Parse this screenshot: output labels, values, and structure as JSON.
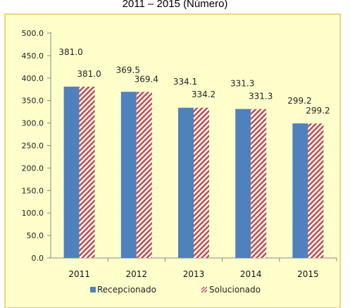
{
  "title": "2011 – 2015 (Número)",
  "colors": {
    "plot_background": "#ffffcc",
    "plot_border": "#e8c84a",
    "recepcionado": "#4f81bd",
    "solucionado": "#c0504d"
  },
  "chart_data": {
    "type": "bar",
    "title": "2011 – 2015 (Número)",
    "categories": [
      "2011",
      "2012",
      "2013",
      "2014",
      "2015"
    ],
    "series": [
      {
        "name": "Recepcionado",
        "values": [
          381.0,
          369.5,
          334.1,
          331.3,
          299.2
        ]
      },
      {
        "name": "Solucionado",
        "values": [
          381.0,
          369.4,
          334.2,
          331.3,
          299.2
        ]
      }
    ],
    "data_labels": {
      "Recepcionado": [
        "381.0",
        "369.5",
        "334.1",
        "331.3",
        "299.2"
      ],
      "Solucionado": [
        "381.0",
        "369.4",
        "334.2",
        "331.3",
        "299.2"
      ]
    },
    "yticks": [
      "0.0",
      "50.0",
      "100.0",
      "150.0",
      "200.0",
      "250.0",
      "300.0",
      "350.0",
      "400.0",
      "450.0",
      "500.0"
    ],
    "ylim": [
      0,
      500
    ],
    "xlabel": "",
    "ylabel": "",
    "legend_position": "bottom",
    "grid": false
  }
}
